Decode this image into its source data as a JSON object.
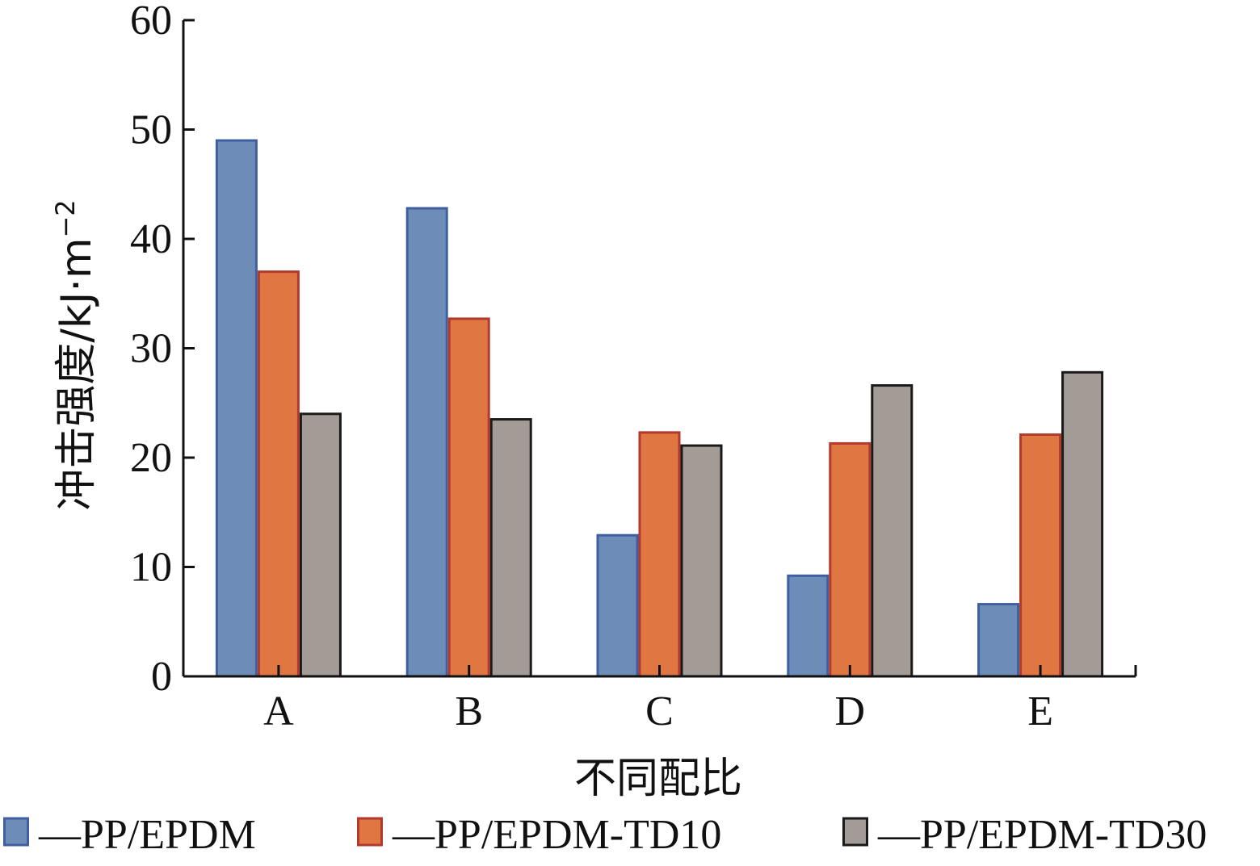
{
  "chart_data": {
    "type": "bar",
    "categories": [
      "A",
      "B",
      "C",
      "D",
      "E"
    ],
    "series": [
      {
        "name": "PP/EPDM",
        "values": [
          49.0,
          42.8,
          12.9,
          9.2,
          6.6
        ],
        "fill": "#6d8db8",
        "stroke": "#3f5fa0"
      },
      {
        "name": "PP/EPDM-TD10",
        "values": [
          37.0,
          32.7,
          22.3,
          21.3,
          22.1
        ],
        "fill": "#e07742",
        "stroke": "#b13a2c"
      },
      {
        "name": "PP/EPDM-TD30",
        "values": [
          24.0,
          23.5,
          21.1,
          26.6,
          27.8
        ],
        "fill": "#a39b96",
        "stroke": "#1a1a1a"
      }
    ],
    "xlabel": "不同配比",
    "ylabel": "冲击强度/kJ·m",
    "ylabel_sup": "−2",
    "ylim": [
      0,
      60
    ],
    "yticks": [
      "0",
      "10",
      "20",
      "30",
      "40",
      "50",
      "60"
    ],
    "legend_position": "bottom",
    "legend_prefix": "—",
    "grid": false
  }
}
